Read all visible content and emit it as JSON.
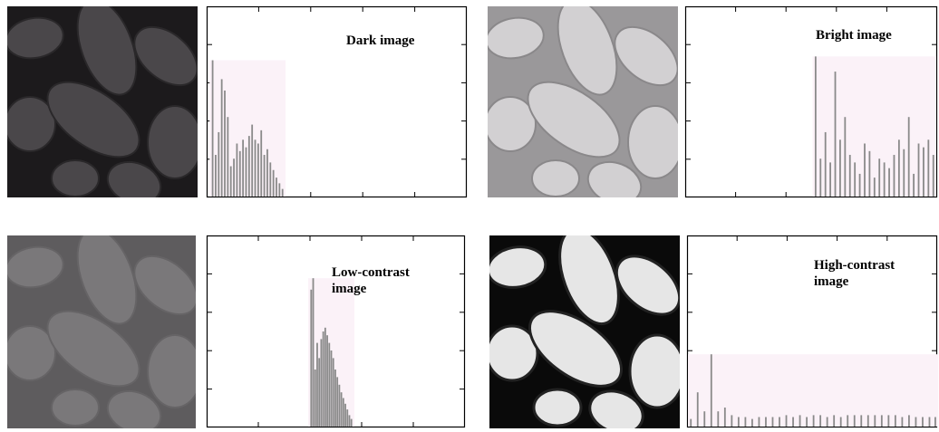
{
  "figure": {
    "panels": [
      {
        "id": "dark",
        "label": "Dark image"
      },
      {
        "id": "bright",
        "label": "Bright image"
      },
      {
        "id": "low",
        "label": "Low-contrast\nimage"
      },
      {
        "id": "high",
        "label": "High-contrast\nimage"
      }
    ]
  },
  "chart_data": [
    {
      "type": "bar",
      "title": "Dark image",
      "xlabel": "",
      "ylabel": "",
      "xlim": [
        0,
        255
      ],
      "ylim": [
        0,
        1
      ],
      "grid": false,
      "series": [
        {
          "bin_center": [
            5,
            8,
            11,
            14,
            17,
            20,
            23,
            26,
            29,
            32,
            35,
            38,
            41,
            44,
            47,
            50,
            53,
            56,
            59,
            62,
            65,
            68,
            71,
            74
          ],
          "values": [
            0.72,
            0.22,
            0.34,
            0.62,
            0.56,
            0.42,
            0.16,
            0.2,
            0.28,
            0.24,
            0.3,
            0.26,
            0.32,
            0.38,
            0.3,
            0.28,
            0.35,
            0.22,
            0.25,
            0.18,
            0.14,
            0.1,
            0.07,
            0.04
          ]
        }
      ]
    },
    {
      "type": "bar",
      "title": "Bright image",
      "xlabel": "",
      "ylabel": "",
      "xlim": [
        0,
        255
      ],
      "ylim": [
        0,
        1
      ],
      "grid": false,
      "series": [
        {
          "bin_center": [
            132,
            137,
            142,
            147,
            152,
            157,
            162,
            167,
            172,
            177,
            182,
            187,
            192,
            197,
            202,
            207,
            212,
            217,
            222,
            227,
            232,
            237,
            242,
            247,
            252
          ],
          "values": [
            0.74,
            0.2,
            0.34,
            0.18,
            0.66,
            0.3,
            0.42,
            0.22,
            0.18,
            0.12,
            0.28,
            0.24,
            0.1,
            0.2,
            0.18,
            0.15,
            0.22,
            0.3,
            0.25,
            0.42,
            0.12,
            0.28,
            0.26,
            0.3,
            0.22
          ]
        }
      ]
    },
    {
      "type": "bar",
      "title": "Low-contrast image",
      "xlabel": "",
      "ylabel": "",
      "xlim": [
        0,
        255
      ],
      "ylim": [
        0,
        1
      ],
      "grid": false,
      "series": [
        {
          "bin_center": [
            103,
            105,
            107,
            109,
            111,
            113,
            115,
            117,
            119,
            121,
            123,
            125,
            127,
            129,
            131,
            133,
            135,
            137,
            139,
            141,
            143
          ],
          "values": [
            0.72,
            0.78,
            0.3,
            0.44,
            0.36,
            0.46,
            0.5,
            0.52,
            0.48,
            0.44,
            0.4,
            0.36,
            0.3,
            0.26,
            0.22,
            0.18,
            0.15,
            0.12,
            0.09,
            0.06,
            0.04
          ]
        }
      ]
    },
    {
      "type": "bar",
      "title": "High-contrast image",
      "xlabel": "",
      "ylabel": "",
      "xlim": [
        0,
        255
      ],
      "ylim": [
        0,
        1
      ],
      "grid": false,
      "series": [
        {
          "bin_center": [
            3,
            10,
            17,
            24,
            31,
            38,
            45,
            52,
            59,
            66,
            73,
            80,
            87,
            94,
            101,
            108,
            115,
            122,
            129,
            136,
            143,
            150,
            157,
            164,
            171,
            178,
            185,
            192,
            199,
            206,
            213,
            220,
            227,
            234,
            241,
            248,
            254
          ],
          "values": [
            0.04,
            0.18,
            0.08,
            0.38,
            0.08,
            0.1,
            0.06,
            0.05,
            0.05,
            0.04,
            0.05,
            0.05,
            0.05,
            0.05,
            0.06,
            0.05,
            0.06,
            0.05,
            0.06,
            0.06,
            0.05,
            0.06,
            0.05,
            0.06,
            0.06,
            0.06,
            0.06,
            0.06,
            0.06,
            0.06,
            0.06,
            0.05,
            0.06,
            0.05,
            0.05,
            0.05,
            0.05
          ]
        }
      ]
    }
  ]
}
